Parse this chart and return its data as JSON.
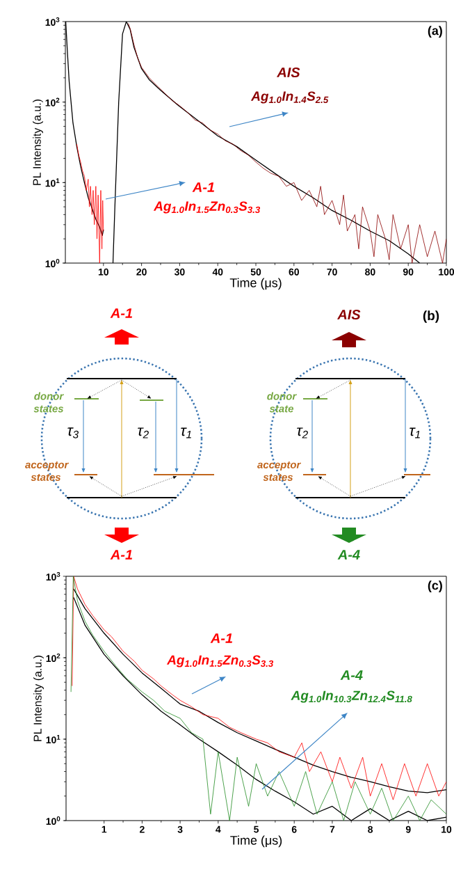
{
  "chart_data": [
    {
      "type": "line",
      "xlabel": "Time (μs)",
      "ylabel": "PL Intensity (a.u.)",
      "log": true,
      "xlim": [
        0,
        100
      ],
      "xticks": [
        10,
        20,
        30,
        40,
        50,
        60,
        70,
        80,
        90,
        100
      ],
      "ylim": [
        1,
        1000
      ],
      "yticks": [
        {
          "value": 1,
          "label": "10$^{0}$"
        },
        {
          "value": 10,
          "label": "10$^{1}$"
        },
        {
          "value": 100,
          "label": "10$^{2}$"
        },
        {
          "value": 1000,
          "label": "10$^{3}$"
        }
      ],
      "annotations": [
        "(a)",
        "Ag$_{1.0}$In$_{1.5}$Zn$_{0.3}$S$_{3.3}$",
        "Ag$_{1.0}$In$_{1.4}$S$_{2.5}$"
      ],
      "series": [
        {
          "color": "#000000",
          "x": [
            0.1,
            0.5,
            1,
            2,
            3,
            4,
            5,
            6,
            7,
            8,
            9,
            9.7,
            10
          ],
          "values": [
            1000,
            450,
            180,
            55,
            28,
            16,
            10,
            6.5,
            4.8,
            3.5,
            2.8,
            2.2,
            2.6
          ]
        },
        {
          "name": "A-1",
          "color": "#ff0000",
          "x": [
            3,
            3.5,
            4,
            4.5,
            5,
            5.5,
            6,
            6.3,
            6.6,
            7,
            7.3,
            7.6,
            8,
            8.3,
            8.6,
            9,
            9.3,
            9.6,
            9.8,
            10
          ],
          "values": [
            30,
            22,
            18,
            14,
            12,
            8,
            11,
            5,
            9,
            4,
            8,
            3,
            9,
            2,
            7,
            1,
            8,
            1.5,
            6,
            2.5
          ]
        },
        {
          "color": "#000000",
          "x": [
            12.5,
            13,
            14,
            15,
            16,
            17,
            18,
            20,
            22,
            25,
            30,
            35,
            40,
            45,
            50,
            55,
            60,
            65,
            70,
            75,
            80,
            85,
            90,
            93
          ],
          "values": [
            1,
            5,
            100,
            700,
            1000,
            800,
            480,
            260,
            190,
            140,
            88,
            58,
            38,
            28,
            19,
            13,
            9,
            6.5,
            4.5,
            3.4,
            2.5,
            1.9,
            1.3,
            1
          ]
        },
        {
          "name": "AIS",
          "color": "#8b0000",
          "x": [
            16.5,
            17,
            18,
            19,
            20,
            22,
            24,
            26,
            28,
            30,
            32,
            34,
            36,
            38,
            40,
            42,
            44,
            46,
            48,
            50,
            52,
            54,
            56,
            58,
            60,
            62,
            64,
            66,
            67,
            68,
            70,
            72,
            73,
            74,
            76,
            77,
            78,
            80,
            81,
            82,
            84,
            85,
            86,
            88,
            90,
            91,
            93,
            95,
            97,
            99,
            100
          ],
          "values": [
            950,
            820,
            520,
            350,
            270,
            200,
            160,
            130,
            105,
            90,
            75,
            60,
            55,
            45,
            40,
            33,
            30,
            25,
            22,
            18,
            15,
            13,
            12,
            9,
            10,
            6,
            8,
            5,
            9,
            4,
            6,
            3,
            7,
            2.5,
            4,
            1.5,
            5,
            2.5,
            1.2,
            4,
            2,
            1.1,
            4,
            1.5,
            3,
            1,
            3,
            1.2,
            2.5,
            1,
            2
          ]
        }
      ]
    },
    {
      "type": "other",
      "annotations": [
        "(b)",
        "A-1",
        "A-1",
        "donor states",
        "acceptor states",
        "τ$_{3}$",
        "τ$_{2}$",
        "τ$_{1}$",
        "AIS",
        "A-4",
        "donor state",
        "acceptor states",
        "τ$_{2}$",
        "τ$_{1}$"
      ]
    },
    {
      "type": "line",
      "xlabel": "Time (μs)",
      "ylabel": "PL Intensity (a.u.)",
      "log": true,
      "xlim": [
        0,
        10
      ],
      "xticks": [
        1,
        2,
        3,
        4,
        5,
        6,
        7,
        8,
        9,
        10
      ],
      "ylim": [
        1,
        1000
      ],
      "yticks": [
        {
          "value": 1,
          "label": "10$^{0}$"
        },
        {
          "value": 10,
          "label": "10$^{1}$"
        },
        {
          "value": 100,
          "label": "10$^{2}$"
        },
        {
          "value": 1000,
          "label": "10$^{3}$"
        }
      ],
      "annotations": [
        "(c)",
        "Ag$_{1.0}$In$_{1.5}$Zn$_{0.3}$S$_{3.3}$",
        "Ag$_{1.0}$In$_{10.3}$Zn$_{12.4}$S$_{11.8}$"
      ],
      "series": [
        {
          "color": "#000000",
          "x": [
            0.2,
            0.5,
            1,
            1.5,
            2,
            2.5,
            3,
            3.5,
            4,
            4.5,
            5,
            5.5,
            6,
            6.5,
            7,
            7.5,
            8,
            8.5,
            9,
            9.5,
            10
          ],
          "values": [
            700,
            400,
            200,
            110,
            65,
            42,
            27,
            22,
            16,
            12,
            9.5,
            7.5,
            6,
            4.8,
            4,
            3.4,
            3,
            2.6,
            2.3,
            2.2,
            2.4
          ]
        },
        {
          "name": "A-1",
          "color": "#ff0000",
          "x": [
            0.16,
            0.2,
            0.3,
            0.5,
            0.7,
            1,
            1.2,
            1.5,
            1.8,
            2,
            2.3,
            2.5,
            2.8,
            3,
            3.3,
            3.6,
            4,
            4.3,
            4.6,
            5,
            5.3,
            5.6,
            6,
            6.2,
            6.4,
            6.7,
            7,
            7.2,
            7.5,
            7.8,
            8,
            8.3,
            8.6,
            8.9,
            9.2,
            9.5,
            9.8,
            10
          ],
          "values": [
            45,
            1000,
            700,
            450,
            330,
            220,
            180,
            120,
            90,
            70,
            55,
            45,
            35,
            30,
            25,
            20,
            18,
            14,
            12,
            10,
            9,
            7,
            6,
            9,
            4,
            7,
            3,
            6,
            2.5,
            6,
            2,
            5,
            1.8,
            5,
            2,
            5,
            2,
            3
          ]
        },
        {
          "color": "#000000",
          "x": [
            0.2,
            0.5,
            1,
            1.5,
            2,
            2.5,
            3,
            3.5,
            4,
            4.5,
            5,
            5.5,
            6,
            6.5,
            7,
            7.5,
            8,
            8.5,
            9,
            9.5,
            10
          ],
          "values": [
            550,
            250,
            110,
            60,
            35,
            22,
            15,
            10,
            7,
            4.8,
            3.2,
            2.3,
            1.7,
            1.2,
            1.5,
            1,
            1.4,
            1,
            1.3,
            1,
            1.1
          ]
        },
        {
          "name": "A-4",
          "color": "#228b22",
          "x": [
            0.13,
            0.19,
            0.3,
            0.5,
            0.7,
            1,
            1.3,
            1.6,
            2,
            2.3,
            2.6,
            3,
            3.3,
            3.6,
            3.8,
            4,
            4.3,
            4.5,
            4.8,
            5,
            5.3,
            5.6,
            6,
            6.3,
            6.6,
            7,
            7.3,
            7.6,
            8,
            8.3,
            8.6,
            9,
            9.3,
            9.6,
            10
          ],
          "values": [
            38,
            1000,
            500,
            280,
            190,
            120,
            80,
            55,
            38,
            30,
            22,
            18,
            12,
            10,
            1.2,
            7,
            1,
            6,
            1.5,
            5,
            2,
            4,
            1.5,
            4,
            1.2,
            3,
            1,
            3,
            1.2,
            2.5,
            1,
            2,
            1,
            1.8,
            1.2
          ]
        }
      ]
    }
  ]
}
